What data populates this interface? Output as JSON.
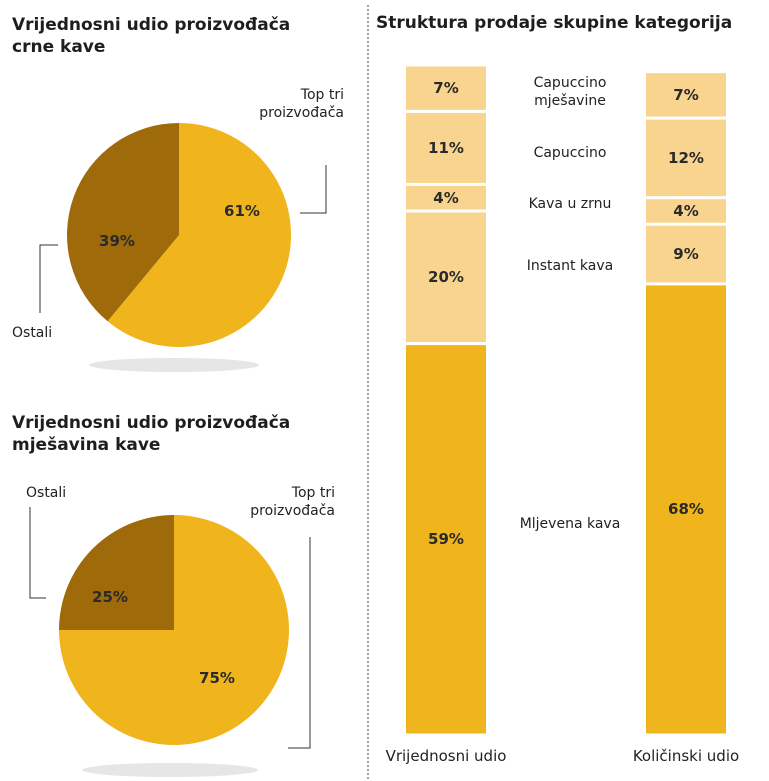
{
  "chart_data": [
    {
      "type": "pie",
      "title": "Vrijednosni udio proizvođača crne kave",
      "categories": [
        "Top tri proizvođača",
        "Ostali"
      ],
      "values": [
        61,
        39
      ],
      "value_labels": [
        "61%",
        "39%"
      ],
      "colors": [
        "#f0b41c",
        "#9e6a0a"
      ]
    },
    {
      "type": "pie",
      "title": "Vrijednosni udio proizvođača mješavina kave",
      "categories": [
        "Top tri proizvođača",
        "Ostali"
      ],
      "values": [
        75,
        25
      ],
      "value_labels": [
        "75%",
        "25%"
      ],
      "colors": [
        "#f0b41c",
        "#9e6a0a"
      ]
    },
    {
      "type": "stacked_bar",
      "title": "Struktura prodaje skupine kategorija",
      "categories": [
        "Vrijednosni udio",
        "Količinski udio"
      ],
      "series": [
        {
          "name": "Mljevena kava",
          "color": "#f0b41c",
          "values": [
            59,
            68
          ],
          "value_labels": [
            "59%",
            "68%"
          ]
        },
        {
          "name": "Instant kava",
          "color": "#f9d48f",
          "values": [
            20,
            9
          ],
          "value_labels": [
            "20%",
            "9%"
          ]
        },
        {
          "name": "Kava u zrnu",
          "color": "#f9d48f",
          "values": [
            4,
            4
          ],
          "value_labels": [
            "4%",
            "4%"
          ]
        },
        {
          "name": "Capuccino",
          "color": "#f9d48f",
          "values": [
            11,
            12
          ],
          "value_labels": [
            "11%",
            "12%"
          ]
        },
        {
          "name": "Capuccino mješavine",
          "color": "#f9d48f",
          "values": [
            7,
            7
          ],
          "value_labels": [
            "7%",
            "7%"
          ]
        }
      ]
    }
  ]
}
